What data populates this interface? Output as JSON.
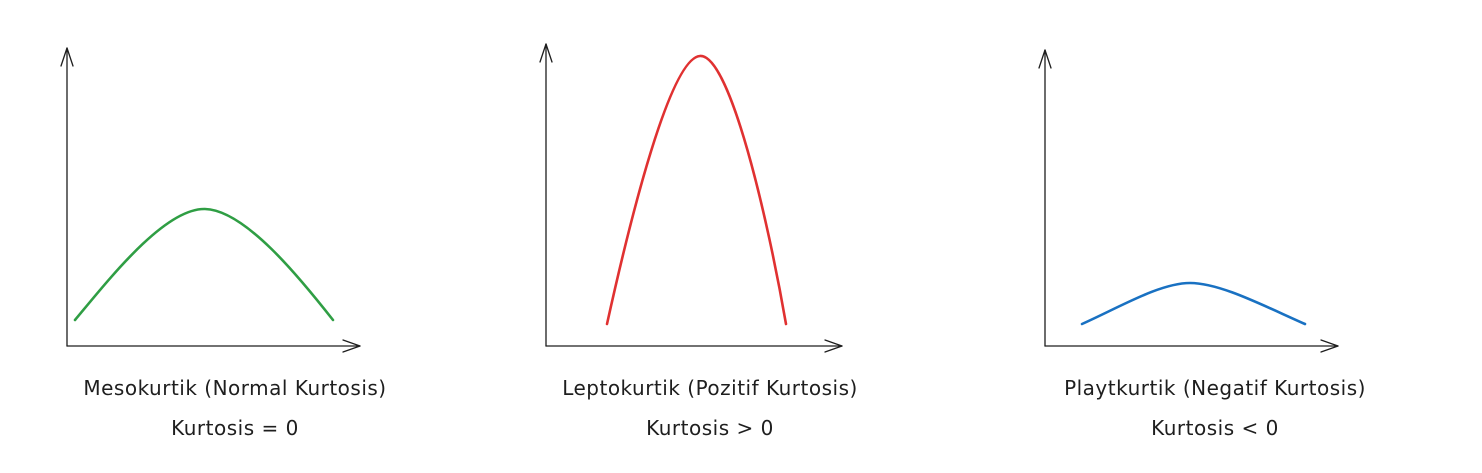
{
  "colors": {
    "axis": "#1e1e1e",
    "mesokurtik": "#2f9e44",
    "leptokurtik": "#e03131",
    "platykurtik": "#1971c2"
  },
  "panels": [
    {
      "id": "mesokurtik",
      "title": "Mesokurtik (Normal Kurtosis)",
      "formula": "Kurtosis = 0",
      "kurtosis_sign": "zero"
    },
    {
      "id": "leptokurtik",
      "title": "Leptokurtik (Pozitif Kurtosis)",
      "formula": "Kurtosis > 0",
      "kurtosis_sign": "positive"
    },
    {
      "id": "platykurtik",
      "title": "Playtkurtik (Negatif Kurtosis)",
      "formula": "Kurtosis < 0",
      "kurtosis_sign": "negative"
    }
  ]
}
